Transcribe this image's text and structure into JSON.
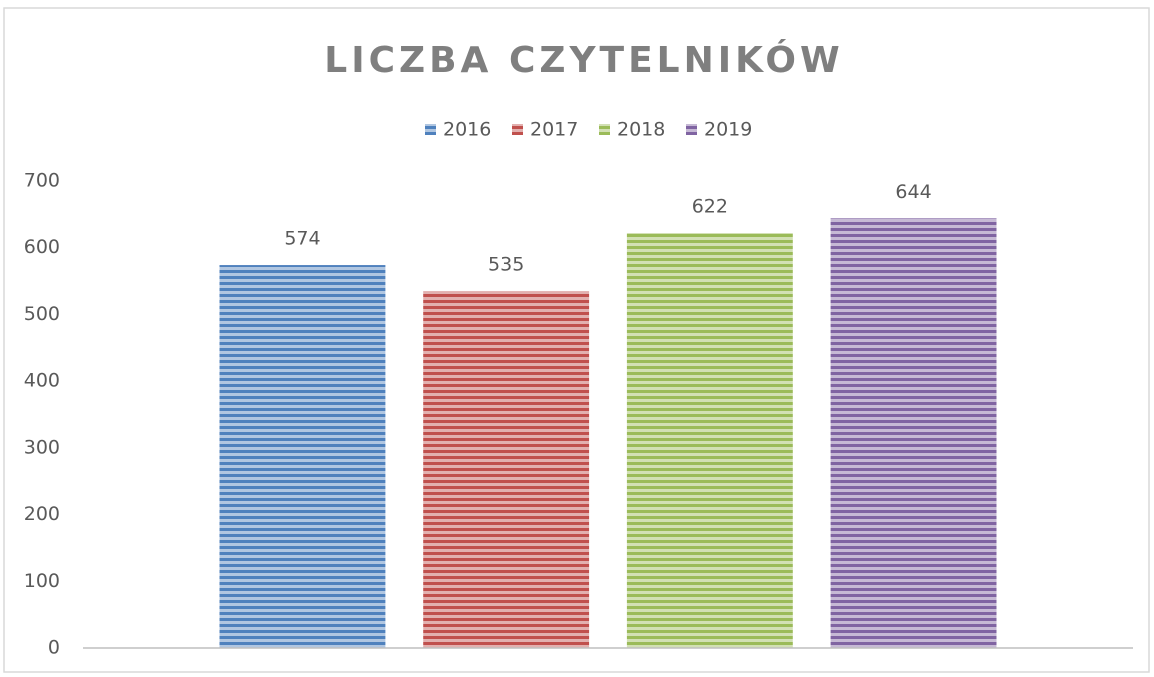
{
  "chart_data": {
    "type": "bar",
    "title": "LICZBA CZYTELNIKÓW",
    "categories": [
      null
    ],
    "series": [
      {
        "name": "2016",
        "color": "#4f81bd",
        "values": [
          574
        ]
      },
      {
        "name": "2017",
        "color": "#c0504d",
        "values": [
          535
        ]
      },
      {
        "name": "2018",
        "color": "#9bbb59",
        "values": [
          622
        ]
      },
      {
        "name": "2019",
        "color": "#8064a2",
        "values": [
          644
        ]
      }
    ],
    "ylim": [
      0,
      700
    ],
    "yticks": [
      0,
      100,
      200,
      300,
      400,
      500,
      600,
      700
    ],
    "grid": false,
    "legend": "top"
  }
}
